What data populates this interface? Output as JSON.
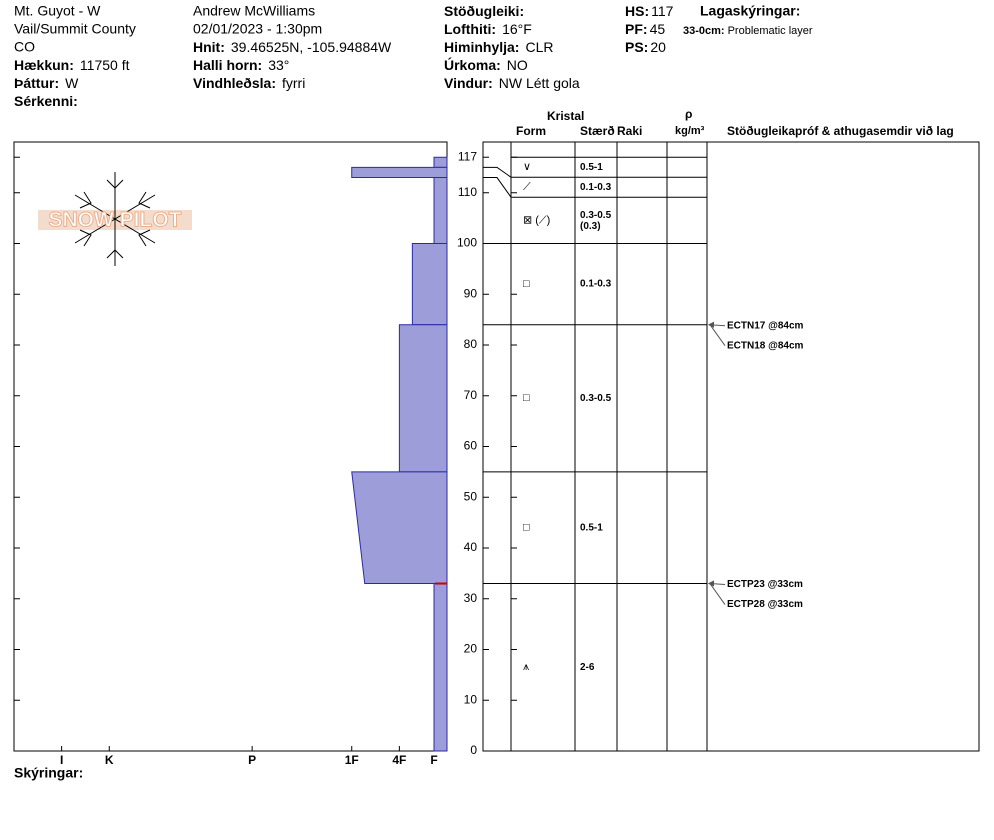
{
  "header": {
    "site": [
      "Mt. Guyot - W",
      "Vail/Summit County",
      "CO"
    ],
    "site_fields": [
      {
        "label": "Hækkun:",
        "value": "11750 ft"
      },
      {
        "label": "Þáttur:",
        "value": "W"
      },
      {
        "label": "Sérkenni:"
      }
    ],
    "observer": [
      "Andrew McWilliams",
      "02/01/2023 - 1:30pm"
    ],
    "obs_fields": [
      {
        "label": "Hnit:",
        "value": "39.46525N, -105.94884W"
      },
      {
        "label": "Halli horn:",
        "value": "33°"
      },
      {
        "label": "Vindhleðsla:",
        "value": "fyrri"
      }
    ],
    "weather_fields": [
      {
        "label": "Stöðugleiki:"
      },
      {
        "label": "Lofthiti:",
        "value": "16°F"
      },
      {
        "label": "Himinhylja:",
        "value": "CLR"
      },
      {
        "label": "Úrkoma:",
        "value": "NO"
      },
      {
        "label": "Vindur:",
        "value": "NW Létt gola"
      }
    ],
    "depth_fields": [
      {
        "label": "HS:",
        "value": 117
      },
      {
        "label": "PF:",
        "value": 45
      },
      {
        "label": "PS:",
        "value": 20
      }
    ],
    "notes_title": "Lagaskýringar:",
    "notes": [
      {
        "range": "33-0cm:",
        "text": "Problematic layer"
      }
    ]
  },
  "logo": "SNOW PILOT",
  "table_headers": {
    "crystal": "Kristal",
    "form": "Form",
    "size": "Stærð",
    "moisture": "Raki",
    "rho": "ρ",
    "density_unit": "kg/m³",
    "tests": "Stöðugleikapróf & athugasemdir við lag"
  },
  "chart_data": {
    "type": "snow_profile",
    "color": "#9d9dd9",
    "ylim": [
      0,
      120
    ],
    "yticks": [
      0,
      10,
      20,
      30,
      40,
      50,
      60,
      70,
      80,
      90,
      100,
      110,
      117
    ],
    "xlim": [
      100,
      0
    ],
    "xticks": [
      {
        "value": 89,
        "label": "I"
      },
      {
        "value": 78,
        "label": "K"
      },
      {
        "value": 45,
        "label": "P"
      },
      {
        "value": 22,
        "label": "1F"
      },
      {
        "value": 11,
        "label": "4F"
      },
      {
        "value": 3,
        "label": "F"
      }
    ],
    "layers": [
      {
        "top": 117,
        "bottom": 115,
        "hardness": 3,
        "form": "∨",
        "size": "0.5-1"
      },
      {
        "top": 115,
        "bottom": 113,
        "hardness": 22,
        "form": "⟋",
        "size": "0.1-0.3"
      },
      {
        "top": 113,
        "bottom": 100,
        "hardness": 3,
        "form": "⊠ (⟋)",
        "size": "0.3-0.5",
        "size_extra": "(0.3)"
      },
      {
        "top": 100,
        "bottom": 84,
        "hardness": 8,
        "form": "□",
        "size": "0.1-0.3"
      },
      {
        "top": 84,
        "bottom": 55,
        "hardness": 11,
        "form": "□",
        "size": "0.3-0.5"
      },
      {
        "top": 55,
        "bottom": 33,
        "hardness": 22,
        "hardness_bottom": 19,
        "form": "□",
        "size": "0.5-1"
      },
      {
        "top": 33,
        "bottom": 0,
        "hardness": 3,
        "form": "⩚",
        "size": "2-6"
      }
    ],
    "tests": [
      {
        "label": "ECTN17 @84cm",
        "depth": 84
      },
      {
        "label": "ECTN18 @84cm",
        "depth": 84
      },
      {
        "label": "ECTP23 @33cm",
        "depth": 33
      },
      {
        "label": "ECTP28 @33cm",
        "depth": 33
      }
    ]
  },
  "footer": "Skýringar:"
}
